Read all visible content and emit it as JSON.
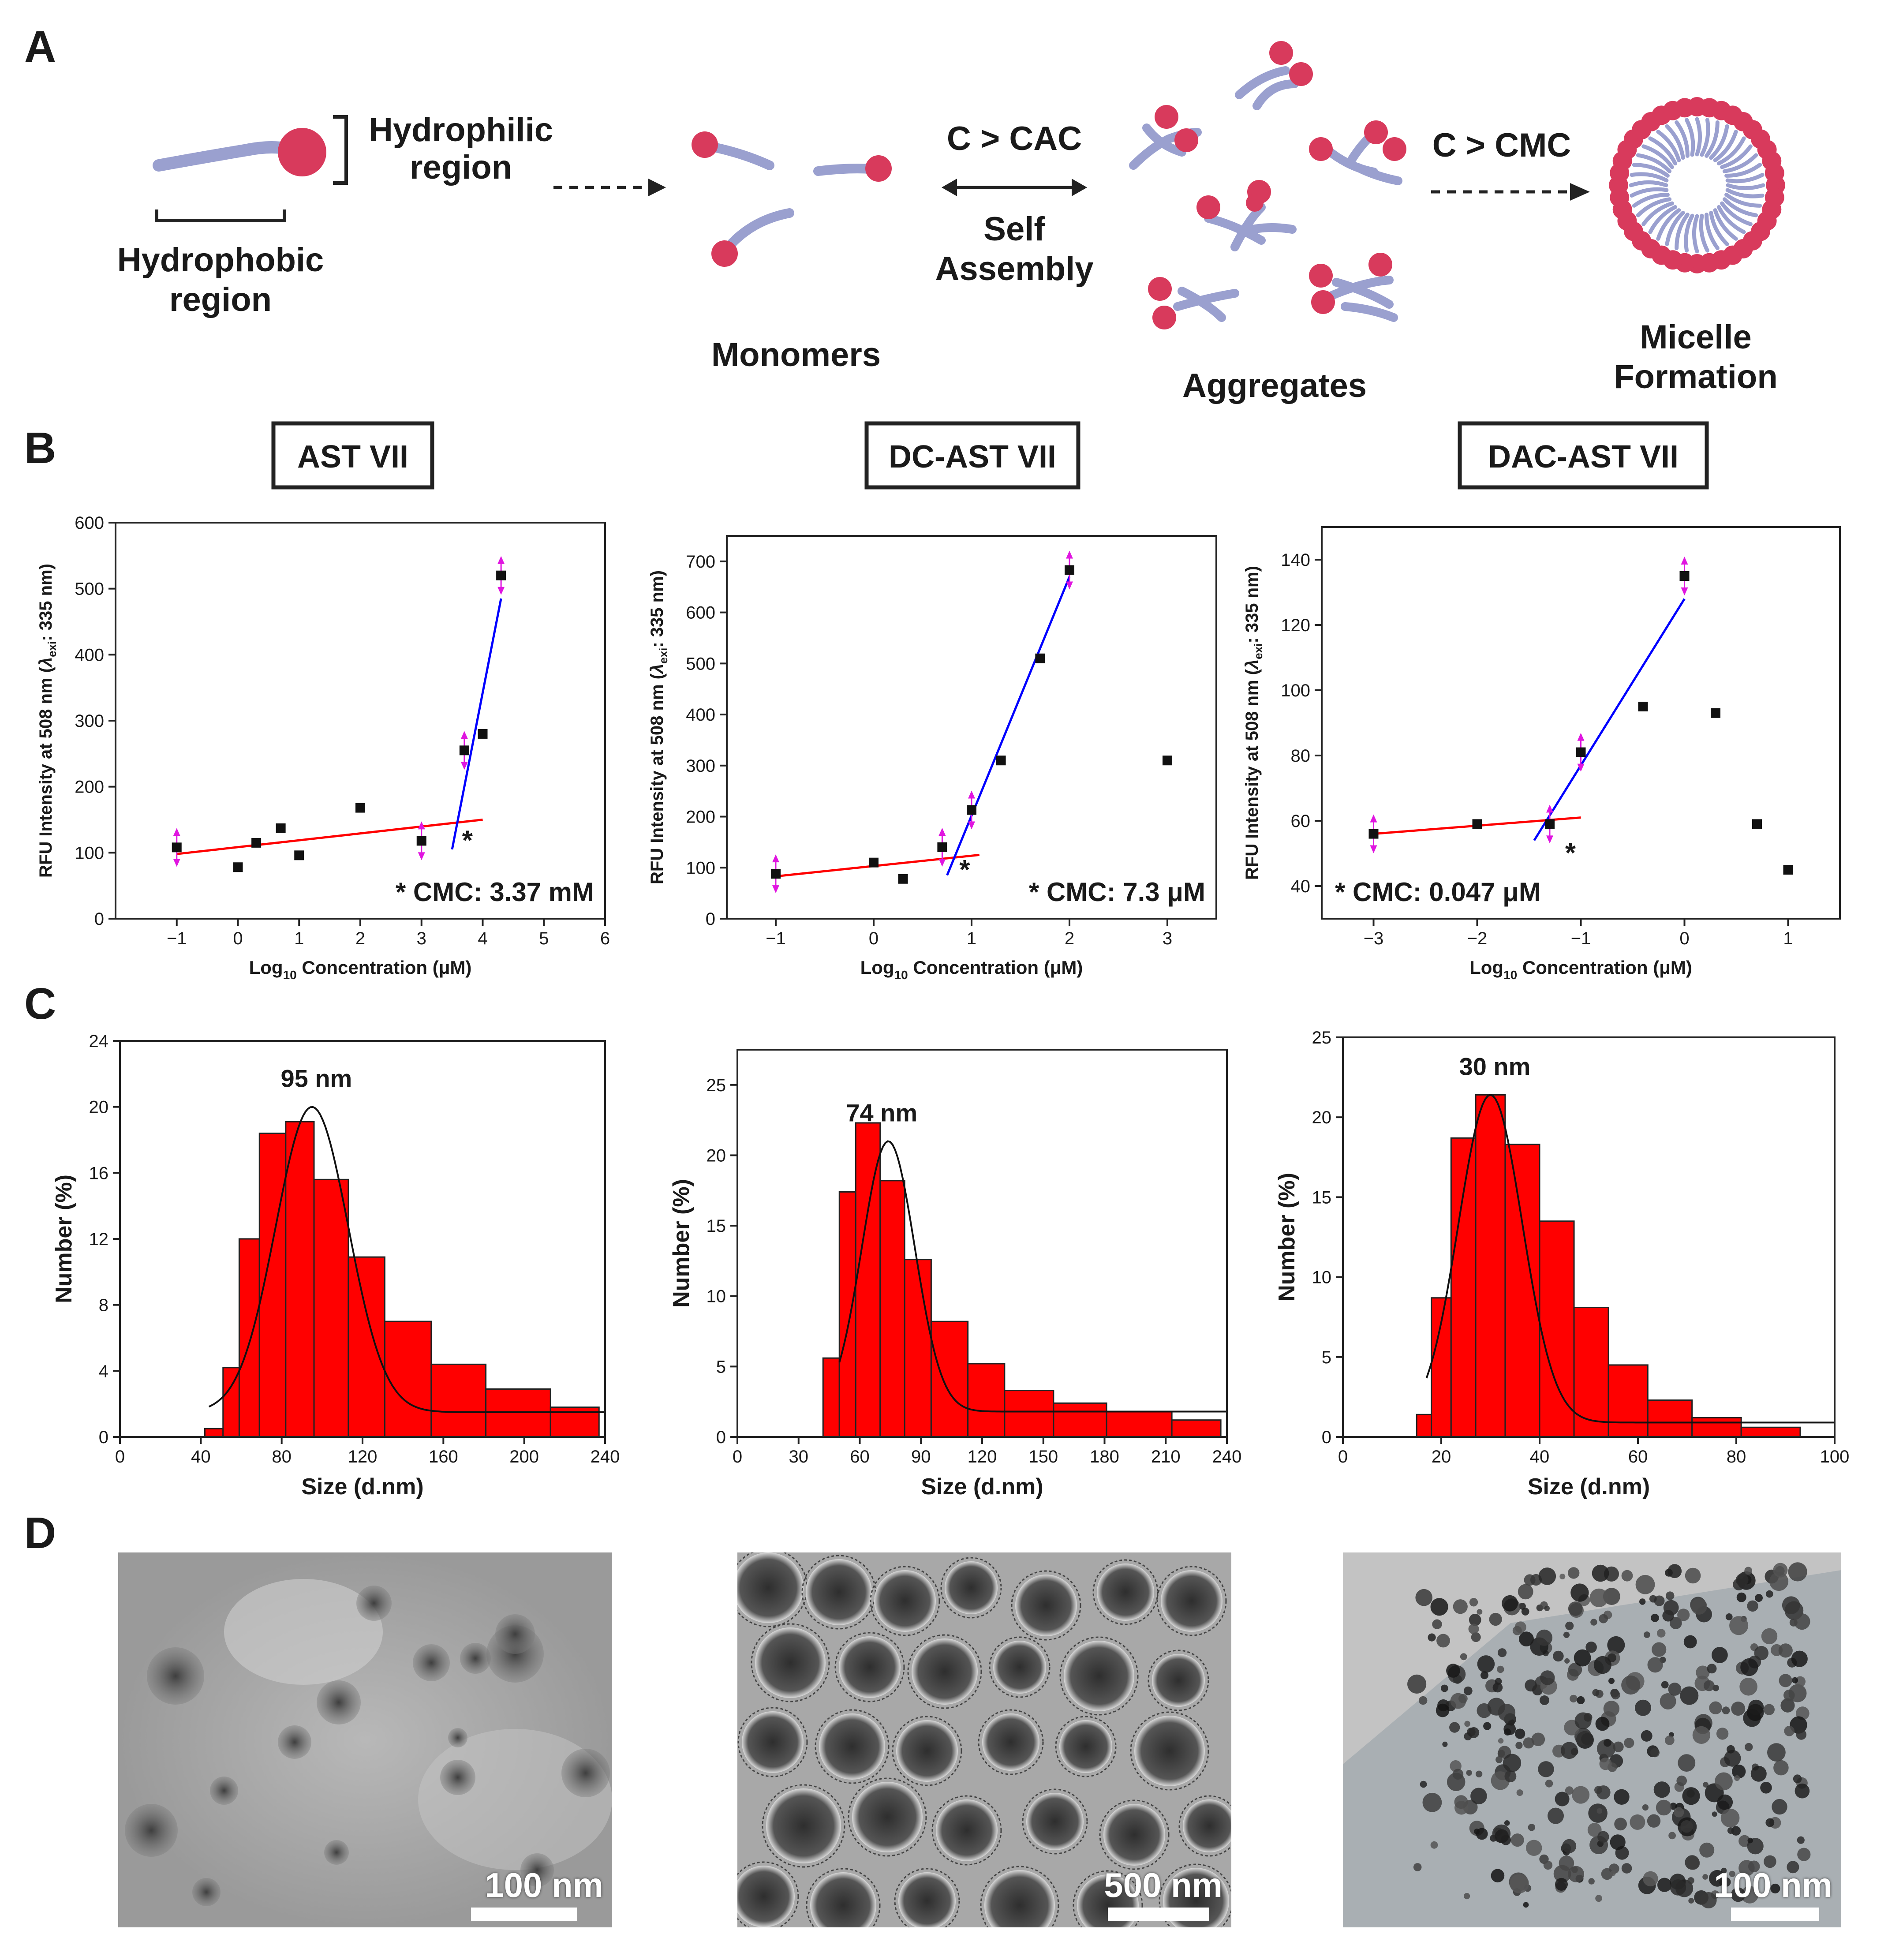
{
  "panel_letters": [
    "A",
    "B",
    "C",
    "D"
  ],
  "schematic": {
    "hydrophilic_label": [
      "Hydrophilic",
      "region"
    ],
    "hydrophobic_label": [
      "Hydrophobic",
      "region"
    ],
    "monomers_label": "Monomers",
    "cac_label": "C > CAC",
    "self_assembly_label": [
      "Self",
      "Assembly"
    ],
    "aggregates_label": "Aggregates",
    "cmc_label": "C > CMC",
    "micelle_label": [
      "Micelle",
      "Formation"
    ],
    "colors": {
      "head": "#d83a5c",
      "tail": "#9aa0cf"
    }
  },
  "chart_data": [
    {
      "id": "B1",
      "type": "scatter",
      "title": "AST VII",
      "xlabel_main": "Log",
      "xlabel_sub": "10",
      "xlabel_rest": " Concentration (μM)",
      "ylabel_main": "RFU Intensity at 508 nm (",
      "ylabel_lambda": "λ",
      "ylabel_sub": "exi",
      "ylabel_rest": ": 335 nm)",
      "xlim": [
        -2,
        6
      ],
      "ylim": [
        0,
        600
      ],
      "xticks": [
        -1,
        0,
        1,
        2,
        3,
        4,
        5,
        6
      ],
      "yticks": [
        0,
        100,
        200,
        300,
        400,
        500,
        600
      ],
      "xtick_labels": [
        "−1",
        "0",
        "1",
        "2",
        "3",
        "4",
        "5",
        "6"
      ],
      "ytick_labels": [
        "0",
        "100",
        "200",
        "300",
        "400",
        "500",
        "600"
      ],
      "points": [
        [
          -1,
          108
        ],
        [
          0,
          78
        ],
        [
          0.3,
          115
        ],
        [
          0.7,
          137
        ],
        [
          1,
          96
        ],
        [
          2,
          168
        ],
        [
          3,
          118
        ],
        [
          3.7,
          255
        ],
        [
          4,
          280
        ],
        [
          4.3,
          520
        ]
      ],
      "marked_points": [
        [
          -1,
          108
        ],
        [
          3,
          118
        ],
        [
          3.7,
          255
        ],
        [
          4.3,
          520
        ]
      ],
      "fit_low": {
        "color": "#ff0000",
        "from": [
          -1,
          98
        ],
        "to": [
          4,
          150
        ]
      },
      "fit_high": {
        "color": "#0000ff",
        "from": [
          3.5,
          105
        ],
        "to": [
          4.3,
          485
        ]
      },
      "star": {
        "x": 3.75,
        "y": 118,
        "text": "*"
      },
      "annotation": "* CMC: 3.37 mM"
    },
    {
      "id": "B2",
      "type": "scatter",
      "title": "DC-AST VII",
      "xlabel_main": "Log",
      "xlabel_sub": "10",
      "xlabel_rest": " Concentration (μM)",
      "ylabel_main": "RFU Intensity at 508 nm (",
      "ylabel_lambda": "λ",
      "ylabel_sub": "exi",
      "ylabel_rest": ": 335 nm)",
      "xlim": [
        -1.5,
        3.5
      ],
      "ylim": [
        0,
        750
      ],
      "xticks": [
        -1,
        0,
        1,
        2,
        3
      ],
      "yticks": [
        0,
        100,
        200,
        300,
        400,
        500,
        600,
        700
      ],
      "xtick_labels": [
        "−1",
        "0",
        "1",
        "2",
        "3"
      ],
      "ytick_labels": [
        "0",
        "100",
        "200",
        "300",
        "400",
        "500",
        "600",
        "700"
      ],
      "points": [
        [
          -1,
          88
        ],
        [
          0,
          110
        ],
        [
          0.3,
          78
        ],
        [
          0.7,
          140
        ],
        [
          1,
          213
        ],
        [
          1.3,
          310
        ],
        [
          1.7,
          510
        ],
        [
          2,
          683
        ],
        [
          3,
          310
        ]
      ],
      "marked_points": [
        [
          -1,
          88
        ],
        [
          0.7,
          140
        ],
        [
          1,
          213
        ],
        [
          2,
          683
        ]
      ],
      "fit_low": {
        "color": "#ff0000",
        "from": [
          -1,
          83
        ],
        "to": [
          1.08,
          125
        ]
      },
      "fit_high": {
        "color": "#0000ff",
        "from": [
          0.75,
          85
        ],
        "to": [
          2,
          670
        ]
      },
      "star": {
        "x": 0.93,
        "y": 95,
        "text": "*"
      },
      "annotation": "* CMC: 7.3 μM"
    },
    {
      "id": "B3",
      "type": "scatter",
      "title": "DAC-AST VII",
      "xlabel_main": "Log",
      "xlabel_sub": "10",
      "xlabel_rest": " Concentration (μM)",
      "ylabel_main": "RFU Intensity at 508 nm (",
      "ylabel_lambda": "λ",
      "ylabel_sub": "exi",
      "ylabel_rest": ": 335 nm)",
      "xlim": [
        -3.5,
        1.5
      ],
      "ylim": [
        30,
        150
      ],
      "xticks": [
        -3,
        -2,
        -1,
        0,
        1
      ],
      "yticks": [
        40,
        60,
        80,
        100,
        120,
        140
      ],
      "xtick_labels": [
        "−3",
        "−2",
        "−1",
        "0",
        "1"
      ],
      "ytick_labels": [
        "40",
        "60",
        "80",
        "100",
        "120",
        "140"
      ],
      "points": [
        [
          -3,
          56
        ],
        [
          -2,
          59
        ],
        [
          -1.3,
          59
        ],
        [
          -1,
          81
        ],
        [
          -0.4,
          95
        ],
        [
          0,
          135
        ],
        [
          0.3,
          93
        ],
        [
          0.7,
          59
        ],
        [
          1,
          45
        ]
      ],
      "marked_points": [
        [
          -3,
          56
        ],
        [
          -1.3,
          59
        ],
        [
          -1,
          81
        ],
        [
          0,
          135
        ]
      ],
      "fit_low": {
        "color": "#ff0000",
        "from": [
          -3,
          56
        ],
        "to": [
          -1,
          61
        ]
      },
      "fit_high": {
        "color": "#0000ff",
        "from": [
          -1.45,
          54
        ],
        "to": [
          0,
          128
        ]
      },
      "star": {
        "x": -1.1,
        "y": 50,
        "text": "*"
      },
      "annotation": "* CMC: 0.047 μM"
    },
    {
      "id": "C1",
      "type": "bar",
      "xlabel": "Size (d.nm)",
      "ylabel": "Number (%)",
      "xlim": [
        0,
        240
      ],
      "ylim": [
        0,
        24
      ],
      "xticks": [
        0,
        40,
        80,
        120,
        160,
        200,
        240
      ],
      "yticks": [
        0,
        4,
        8,
        12,
        16,
        20,
        24
      ],
      "xtick_labels": [
        "0",
        "40",
        "80",
        "120",
        "160",
        "200",
        "240"
      ],
      "ytick_labels": [
        "0",
        "4",
        "8",
        "12",
        "16",
        "20",
        "24"
      ],
      "bars": [
        [
          42,
          51,
          0.5
        ],
        [
          51,
          59,
          4.2
        ],
        [
          59,
          69,
          12
        ],
        [
          69,
          82,
          18.4
        ],
        [
          82,
          96,
          19.1
        ],
        [
          96,
          113,
          15.6
        ],
        [
          113,
          131,
          10.9
        ],
        [
          131,
          154,
          7
        ],
        [
          154,
          181,
          4.4
        ],
        [
          181,
          213,
          2.9
        ],
        [
          213,
          237,
          1.8
        ]
      ],
      "fit": {
        "mean": 95,
        "sigma": 18,
        "amp": 18.5,
        "base": 1.5,
        "from": 44,
        "to": 240
      },
      "peak_label": "95 nm"
    },
    {
      "id": "C2",
      "type": "bar",
      "xlabel": "Size (d.nm)",
      "ylabel": "Number (%)",
      "xlim": [
        0,
        240
      ],
      "ylim": [
        0,
        27.5
      ],
      "xticks": [
        0,
        30,
        60,
        90,
        120,
        150,
        180,
        210,
        240
      ],
      "yticks": [
        0,
        5,
        10,
        15,
        20,
        25
      ],
      "xtick_labels": [
        "0",
        "30",
        "60",
        "90",
        "120",
        "150",
        "180",
        "210",
        "240"
      ],
      "ytick_labels": [
        "0",
        "5",
        "10",
        "15",
        "20",
        "25"
      ],
      "bars": [
        [
          42,
          50,
          5.6
        ],
        [
          50,
          58,
          17.4
        ],
        [
          58,
          70,
          22.3
        ],
        [
          70,
          82,
          18.2
        ],
        [
          82,
          95,
          12.6
        ],
        [
          95,
          113,
          8.2
        ],
        [
          113,
          131,
          5.2
        ],
        [
          131,
          155,
          3.3
        ],
        [
          155,
          181,
          2.4
        ],
        [
          181,
          213,
          1.8
        ],
        [
          213,
          237,
          1.2
        ]
      ],
      "fit": {
        "mean": 74,
        "sigma": 13,
        "amp": 19.2,
        "base": 1.8,
        "from": 50,
        "to": 240
      },
      "peak_label": "74 nm"
    },
    {
      "id": "C3",
      "type": "bar",
      "xlabel": "Size (d.nm)",
      "ylabel": "Number (%)",
      "xlim": [
        0,
        100
      ],
      "ylim": [
        0,
        25
      ],
      "xticks": [
        0,
        20,
        40,
        60,
        80,
        100
      ],
      "yticks": [
        0,
        5,
        10,
        15,
        20,
        25
      ],
      "xtick_labels": [
        "0",
        "20",
        "40",
        "60",
        "80",
        "100"
      ],
      "ytick_labels": [
        "0",
        "5",
        "10",
        "15",
        "20",
        "25"
      ],
      "bars": [
        [
          15,
          18,
          1.4
        ],
        [
          18,
          22,
          8.7
        ],
        [
          22,
          27,
          18.7
        ],
        [
          27,
          33,
          21.4
        ],
        [
          33,
          40,
          18.3
        ],
        [
          40,
          47,
          13.5
        ],
        [
          47,
          54,
          8.1
        ],
        [
          54,
          62,
          4.5
        ],
        [
          62,
          71,
          2.3
        ],
        [
          71,
          81,
          1.2
        ],
        [
          81,
          93,
          0.6
        ]
      ],
      "fit": {
        "mean": 30,
        "sigma": 6.5,
        "amp": 20.5,
        "base": 0.9,
        "from": 17,
        "to": 100
      },
      "peak_label": "30 nm"
    }
  ],
  "tem_panels": [
    {
      "scale_label": "100 nm",
      "background": "#aaaaaa"
    },
    {
      "scale_label": "500 nm",
      "background": "#9c9c9c"
    },
    {
      "scale_label": "100 nm",
      "background": "#b4b4b4"
    }
  ]
}
